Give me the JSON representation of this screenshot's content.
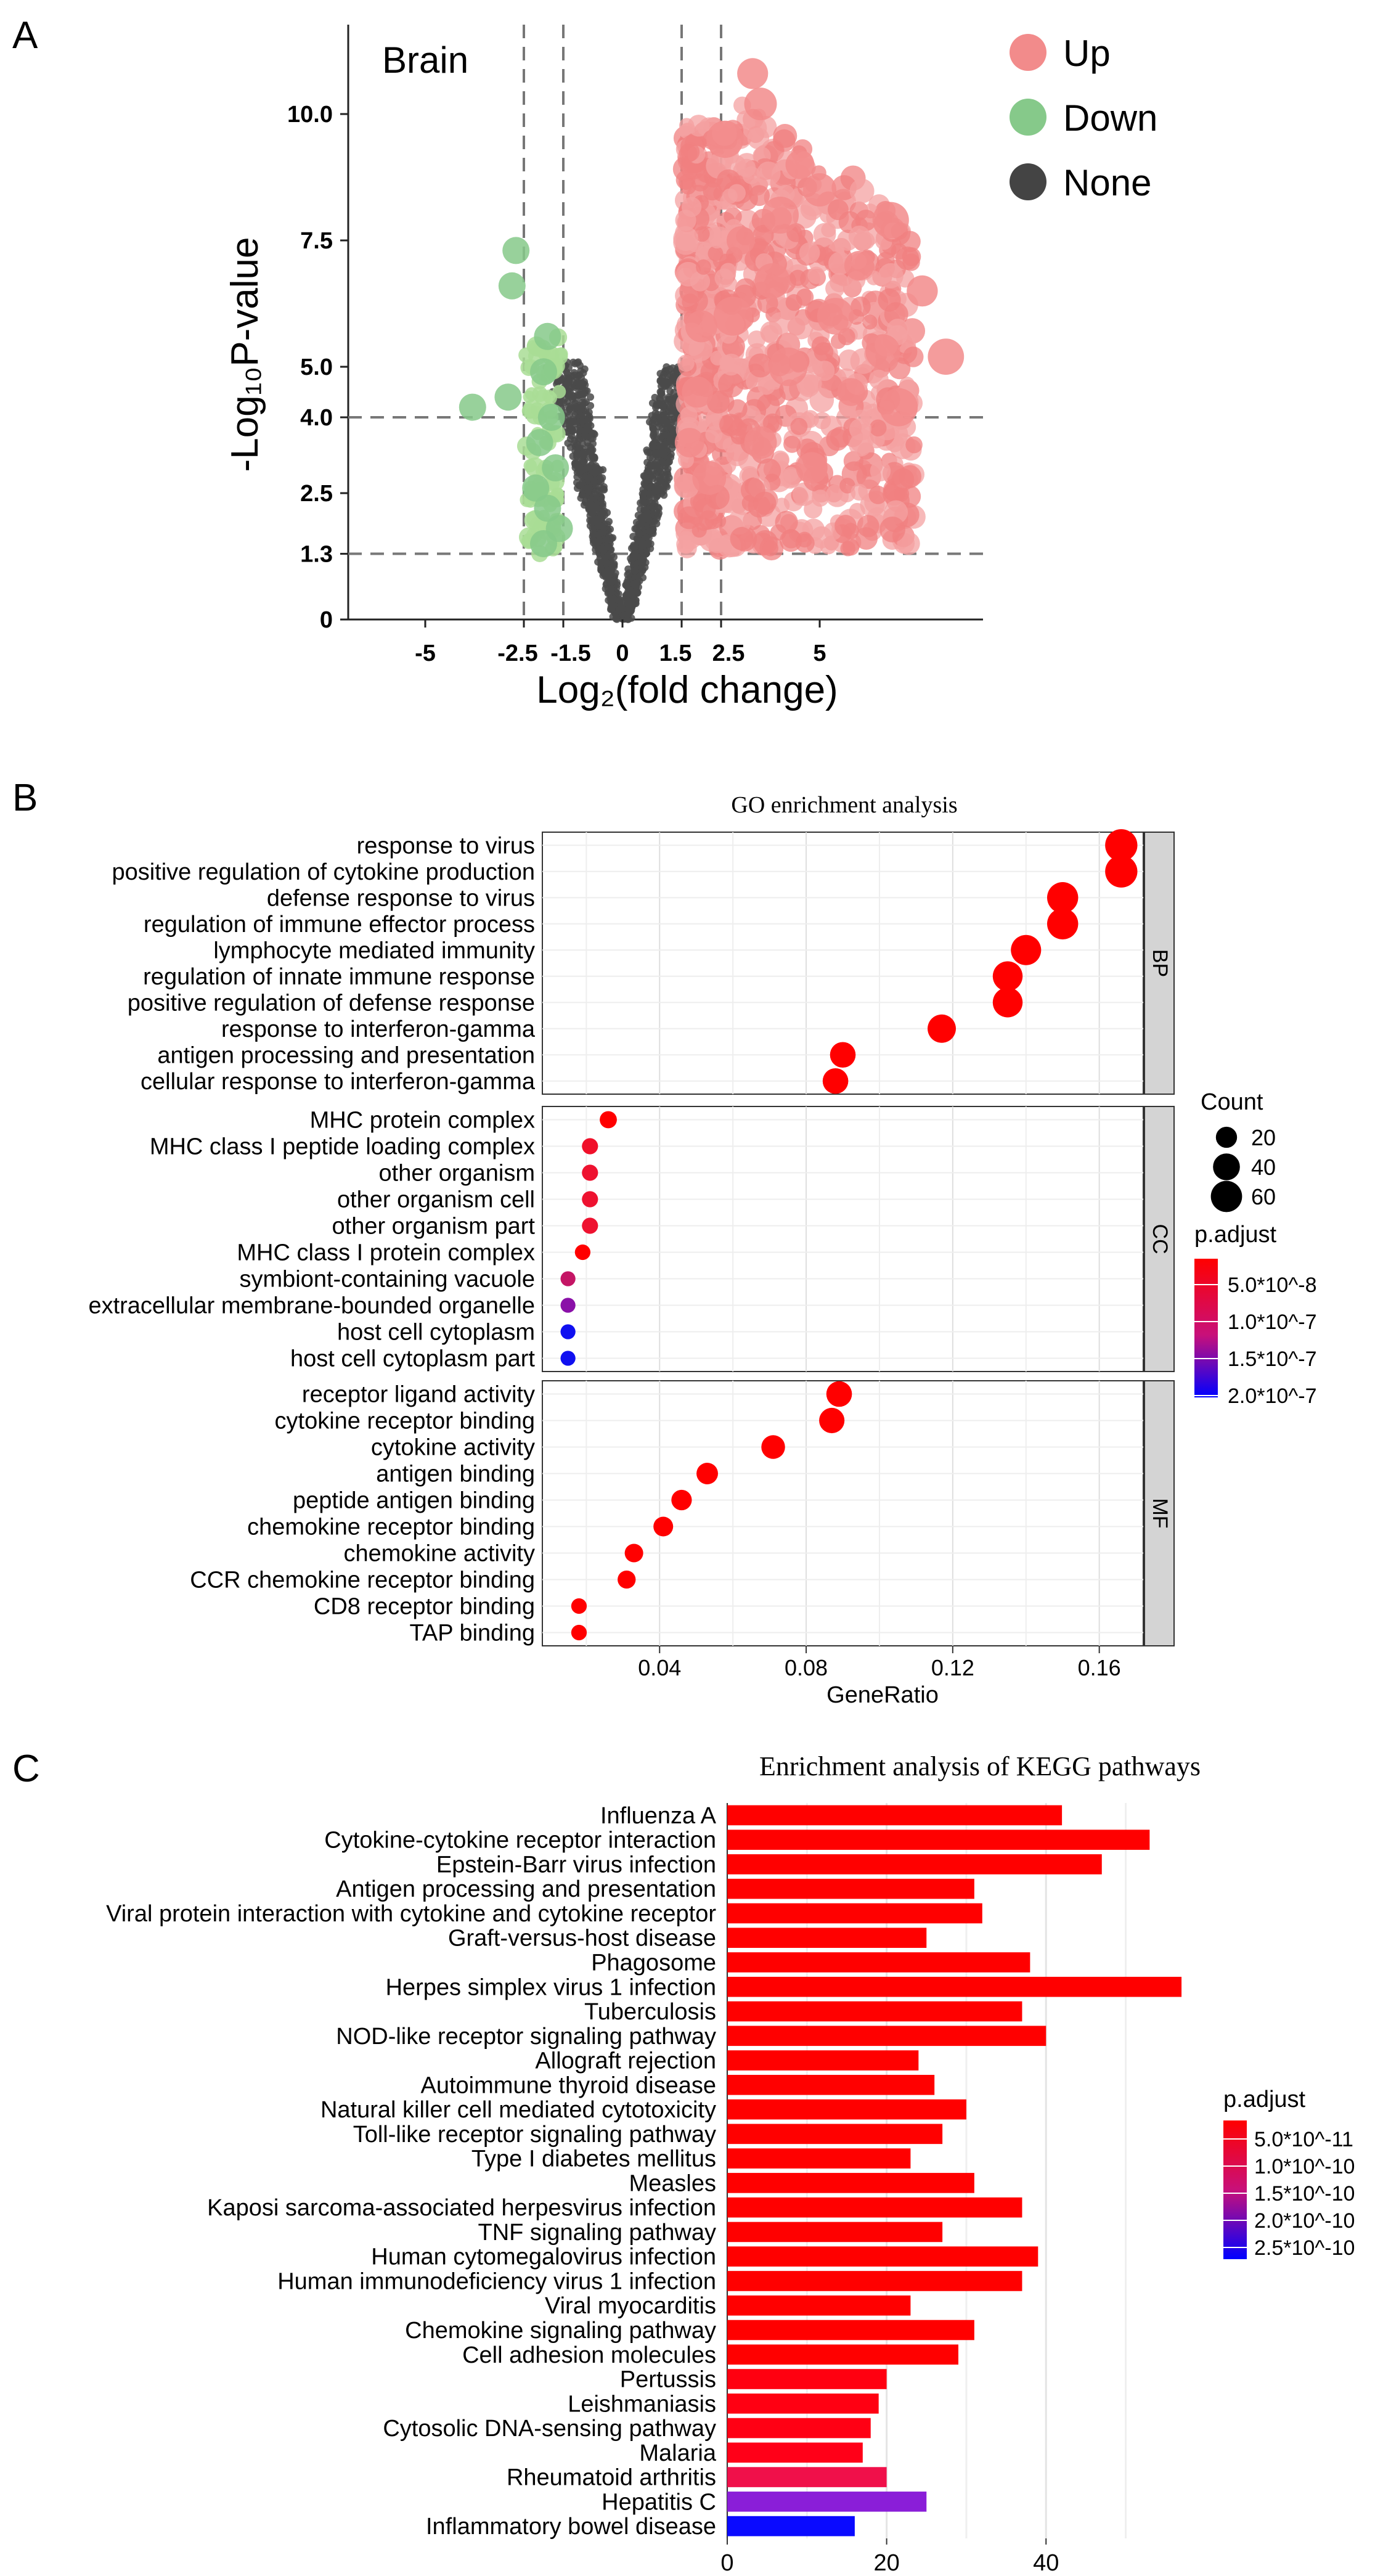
{
  "panel_labels": {
    "a": "A",
    "b": "B",
    "c": "C"
  },
  "chart_data": [
    {
      "type": "scatter",
      "panel": "A",
      "annotation": "Brain",
      "title": "",
      "xlabel": "Log₂(fold change)",
      "ylabel": "-Log₁₀P-value",
      "xlim": [
        -9.5,
        9
      ],
      "ylim": [
        0,
        11.3
      ],
      "x_ticks": [
        "-5",
        "-2.5",
        "-1.5",
        "0",
        "1.5",
        "2.5",
        "5"
      ],
      "y_ticks": [
        "0",
        "1.3",
        "2.5",
        "4.0",
        "5.0",
        "7.5",
        "10.0"
      ],
      "thresholds": {
        "log2fc": [
          -2.5,
          -1.5,
          1.5,
          2.5
        ],
        "neg_log10_p": [
          1.3,
          4.0
        ]
      },
      "legend": {
        "placement": "right",
        "entries": [
          {
            "name": "Up",
            "color": "#f28b8b"
          },
          {
            "name": "Down",
            "color": "#86c98a"
          },
          {
            "name": "None",
            "color": "#444444"
          }
        ]
      },
      "series": [
        {
          "name": "Down",
          "color": "#86c98a",
          "points": [
            [
              -2.7,
              7.3
            ],
            [
              -2.8,
              6.6
            ],
            [
              -3.8,
              4.2
            ],
            [
              -2.9,
              4.4
            ],
            [
              -1.9,
              5.6
            ],
            [
              -2.0,
              4.9
            ],
            [
              -1.8,
              4.0
            ],
            [
              -2.1,
              3.5
            ],
            [
              -1.7,
              3.0
            ],
            [
              -2.2,
              2.6
            ],
            [
              -1.9,
              2.2
            ],
            [
              -1.6,
              1.8
            ],
            [
              -2.0,
              1.5
            ]
          ]
        },
        {
          "name": "Up",
          "color": "#f28b8b",
          "points": [
            [
              3.3,
              10.8
            ],
            [
              3.5,
              10.2
            ],
            [
              4.5,
              9.0
            ],
            [
              6.0,
              7.0
            ],
            [
              6.8,
              7.9
            ],
            [
              7.6,
              6.5
            ],
            [
              6.6,
              5.3
            ],
            [
              8.2,
              5.2
            ],
            [
              5.4,
              6.0
            ],
            [
              4.0,
              8.0
            ],
            [
              3.0,
              7.5
            ],
            [
              2.8,
              6.0
            ],
            [
              4.2,
              5.0
            ],
            [
              5.8,
              4.5
            ],
            [
              2.0,
              5.8
            ],
            [
              1.9,
              4.5
            ],
            [
              1.7,
              3.5
            ],
            [
              2.2,
              2.8
            ],
            [
              3.5,
              3.5
            ],
            [
              4.8,
              3.0
            ],
            [
              2.6,
              9.5
            ],
            [
              5.0,
              8.5
            ],
            [
              3.8,
              6.7
            ],
            [
              7.0,
              4.2
            ]
          ]
        },
        {
          "name": "None",
          "color": "#444444",
          "description": "non-significant genes forming V-shaped cloud within |log2FC| < 2.5"
        }
      ]
    },
    {
      "type": "scatter",
      "panel": "B",
      "title": "GO enrichment analysis",
      "xlabel": "GeneRatio",
      "ylabel": "",
      "xlim": [
        0.008,
        0.172
      ],
      "x_ticks": [
        "0.04",
        "0.08",
        "0.12",
        "0.16"
      ],
      "facets": [
        "BP",
        "CC",
        "MF"
      ],
      "size_legend": {
        "title": "Count",
        "values": [
          "20",
          "40",
          "60"
        ]
      },
      "color_legend": {
        "title": "p.adjust",
        "labels": [
          "5.0*10^-8",
          "1.0*10^-7",
          "1.5*10^-7",
          "2.0*10^-7"
        ],
        "low_color": "#ff0000",
        "high_color": "#0000ff"
      },
      "rows": [
        {
          "facet": "BP",
          "term": "response to virus",
          "gene_ratio": 0.166,
          "count": 65,
          "color": "#ff0000"
        },
        {
          "facet": "BP",
          "term": "positive regulation of cytokine production",
          "gene_ratio": 0.166,
          "count": 65,
          "color": "#ff0000"
        },
        {
          "facet": "BP",
          "term": "defense response to virus",
          "gene_ratio": 0.15,
          "count": 59,
          "color": "#ff0000"
        },
        {
          "facet": "BP",
          "term": "regulation of immune effector process",
          "gene_ratio": 0.15,
          "count": 59,
          "color": "#ff0000"
        },
        {
          "facet": "BP",
          "term": "lymphocyte mediated immunity",
          "gene_ratio": 0.14,
          "count": 55,
          "color": "#ff0000"
        },
        {
          "facet": "BP",
          "term": "regulation of innate immune response",
          "gene_ratio": 0.135,
          "count": 53,
          "color": "#ff0000"
        },
        {
          "facet": "BP",
          "term": "positive regulation of defense response",
          "gene_ratio": 0.135,
          "count": 53,
          "color": "#ff0000"
        },
        {
          "facet": "BP",
          "term": "response to interferon-gamma",
          "gene_ratio": 0.117,
          "count": 46,
          "color": "#ff0000"
        },
        {
          "facet": "BP",
          "term": "antigen processing and presentation",
          "gene_ratio": 0.09,
          "count": 35,
          "color": "#ff0000"
        },
        {
          "facet": "BP",
          "term": "cellular response to interferon-gamma",
          "gene_ratio": 0.088,
          "count": 35,
          "color": "#ff0000"
        },
        {
          "facet": "CC",
          "term": "MHC protein complex",
          "gene_ratio": 0.026,
          "count": 10,
          "color": "#ff0000"
        },
        {
          "facet": "CC",
          "term": "MHC class I peptide loading complex",
          "gene_ratio": 0.021,
          "count": 8,
          "color": "#f0102a"
        },
        {
          "facet": "CC",
          "term": "other organism",
          "gene_ratio": 0.021,
          "count": 8,
          "color": "#ee1230"
        },
        {
          "facet": "CC",
          "term": "other organism cell",
          "gene_ratio": 0.021,
          "count": 8,
          "color": "#ee1230"
        },
        {
          "facet": "CC",
          "term": "other organism part",
          "gene_ratio": 0.021,
          "count": 8,
          "color": "#ee1230"
        },
        {
          "facet": "CC",
          "term": "MHC class I protein complex",
          "gene_ratio": 0.019,
          "count": 7,
          "color": "#ff0000"
        },
        {
          "facet": "CC",
          "term": "symbiont-containing vacuole",
          "gene_ratio": 0.015,
          "count": 6,
          "color": "#c41565"
        },
        {
          "facet": "CC",
          "term": "extracellular membrane-bounded organelle",
          "gene_ratio": 0.015,
          "count": 6,
          "color": "#8a10a8"
        },
        {
          "facet": "CC",
          "term": "host cell cytoplasm",
          "gene_ratio": 0.015,
          "count": 6,
          "color": "#1010f0"
        },
        {
          "facet": "CC",
          "term": "host cell cytoplasm part",
          "gene_ratio": 0.015,
          "count": 6,
          "color": "#1010f0"
        },
        {
          "facet": "MF",
          "term": "receptor ligand activity",
          "gene_ratio": 0.089,
          "count": 35,
          "color": "#ff0000"
        },
        {
          "facet": "MF",
          "term": "cytokine receptor binding",
          "gene_ratio": 0.087,
          "count": 34,
          "color": "#ff0000"
        },
        {
          "facet": "MF",
          "term": "cytokine activity",
          "gene_ratio": 0.071,
          "count": 28,
          "color": "#ff0000"
        },
        {
          "facet": "MF",
          "term": "antigen binding",
          "gene_ratio": 0.053,
          "count": 21,
          "color": "#ff0000"
        },
        {
          "facet": "MF",
          "term": "peptide antigen binding",
          "gene_ratio": 0.046,
          "count": 18,
          "color": "#ff0000"
        },
        {
          "facet": "MF",
          "term": "chemokine receptor binding",
          "gene_ratio": 0.041,
          "count": 16,
          "color": "#ff0000"
        },
        {
          "facet": "MF",
          "term": "chemokine activity",
          "gene_ratio": 0.033,
          "count": 13,
          "color": "#ff0000"
        },
        {
          "facet": "MF",
          "term": "CCR chemokine receptor binding",
          "gene_ratio": 0.031,
          "count": 12,
          "color": "#ff0000"
        },
        {
          "facet": "MF",
          "term": "CD8 receptor binding",
          "gene_ratio": 0.018,
          "count": 7,
          "color": "#ff0000"
        },
        {
          "facet": "MF",
          "term": "TAP binding",
          "gene_ratio": 0.018,
          "count": 7,
          "color": "#ff0000"
        }
      ]
    },
    {
      "type": "bar",
      "panel": "C",
      "orientation": "horizontal",
      "title": "Enrichment analysis of KEGG pathways",
      "xlabel": "",
      "ylabel": "",
      "xlim": [
        0,
        58
      ],
      "x_ticks": [
        "0",
        "20",
        "40"
      ],
      "color_legend": {
        "title": "p.adjust",
        "labels": [
          "5.0*10^-11",
          "1.0*10^-10",
          "1.5*10^-10",
          "2.0*10^-10",
          "2.5*10^-10"
        ],
        "low_color": "#ff0000",
        "high_color": "#0000ff"
      },
      "categories": [
        "Influenza A",
        "Cytokine-cytokine receptor interaction",
        "Epstein-Barr virus infection",
        "Antigen processing and presentation",
        "Viral protein interaction with cytokine and cytokine receptor",
        "Graft-versus-host disease",
        "Phagosome",
        "Herpes simplex virus 1 infection",
        "Tuberculosis",
        "NOD-like receptor signaling pathway",
        "Allograft rejection",
        "Autoimmune thyroid disease",
        "Natural killer cell mediated cytotoxicity",
        "Toll-like receptor signaling pathway",
        "Type I diabetes mellitus",
        "Measles",
        "Kaposi sarcoma-associated herpesvirus infection",
        "TNF signaling pathway",
        "Human cytomegalovirus infection",
        "Human immunodeficiency virus 1 infection",
        "Viral myocarditis",
        "Chemokine signaling pathway",
        "Cell adhesion molecules",
        "Pertussis",
        "Leishmaniasis",
        "Cytosolic DNA-sensing pathway",
        "Malaria",
        "Rheumatoid arthritis",
        "Hepatitis C",
        "Inflammatory bowel disease"
      ],
      "values": [
        42,
        53,
        47,
        31,
        32,
        25,
        38,
        57,
        37,
        40,
        24,
        26,
        30,
        27,
        23,
        31,
        37,
        27,
        39,
        37,
        23,
        31,
        29,
        20,
        19,
        18,
        17,
        20,
        25,
        16
      ],
      "colors": [
        "#ff0000",
        "#ff0000",
        "#ff0000",
        "#ff0000",
        "#ff0000",
        "#ff0000",
        "#ff0000",
        "#ff0000",
        "#ff0000",
        "#ff0000",
        "#ff0000",
        "#ff0000",
        "#ff0000",
        "#ff0000",
        "#ff0000",
        "#ff0000",
        "#ff0000",
        "#ff0000",
        "#ff0000",
        "#ff0000",
        "#ff0000",
        "#ff0000",
        "#ff0000",
        "#ff0010",
        "#ff0012",
        "#ff0014",
        "#ff0018",
        "#f0104a",
        "#8a1ed8",
        "#0a0aff"
      ]
    }
  ]
}
